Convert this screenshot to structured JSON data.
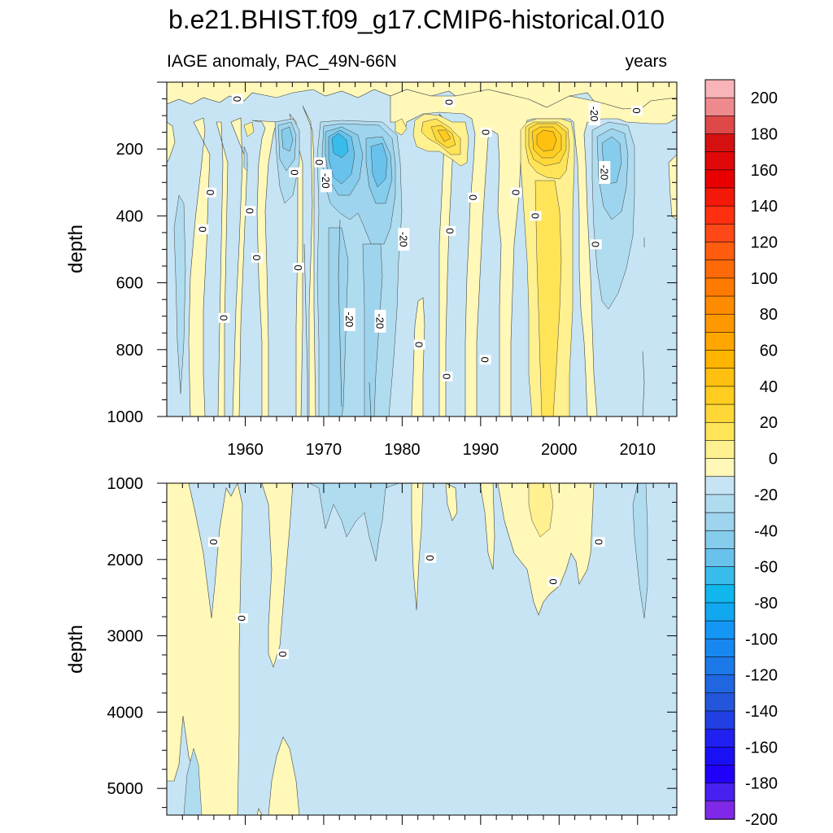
{
  "title": "b.e21.BHIST.f09_g17.CMIP6-historical.010",
  "chart_data": [
    {
      "type": "contour",
      "panel": "upper",
      "left_label": "IAGE anomaly, PAC_49N-66N",
      "right_label": "years",
      "ylabel": "depth",
      "xlabel": "",
      "xlim": [
        1950,
        2015
      ],
      "ylim": [
        1000,
        0
      ],
      "x_ticks": [
        1960,
        1970,
        1980,
        1990,
        2000,
        2010
      ],
      "x_tick_labels": [
        "1960",
        "1970",
        "1980",
        "1990",
        "2000",
        "2010"
      ],
      "y_ticks": [
        200,
        400,
        600,
        800,
        1000
      ],
      "y_tick_labels": [
        "200",
        "400",
        "600",
        "800",
        "1000"
      ],
      "contour_labels": [
        {
          "year": 1958.8,
          "depth": 50,
          "text": "0"
        },
        {
          "year": 1985.8,
          "depth": 60,
          "text": "0"
        },
        {
          "year": 2004.3,
          "depth": 95,
          "text": "-20"
        },
        {
          "year": 2009.7,
          "depth": 85,
          "text": "0"
        },
        {
          "year": 1990.5,
          "depth": 150,
          "text": "0"
        },
        {
          "year": 1969.3,
          "depth": 240,
          "text": "0"
        },
        {
          "year": 1966.1,
          "depth": 270,
          "text": "0"
        },
        {
          "year": 1970.1,
          "depth": 295,
          "text": "-20"
        },
        {
          "year": 2005.6,
          "depth": 270,
          "text": "-20"
        },
        {
          "year": 1955.4,
          "depth": 330,
          "text": "0"
        },
        {
          "year": 1988.9,
          "depth": 345,
          "text": "0"
        },
        {
          "year": 1994.3,
          "depth": 330,
          "text": "0"
        },
        {
          "year": 1960.4,
          "depth": 385,
          "text": "0"
        },
        {
          "year": 1996.8,
          "depth": 400,
          "text": "0"
        },
        {
          "year": 1954.4,
          "depth": 440,
          "text": "0"
        },
        {
          "year": 1985.9,
          "depth": 445,
          "text": "0"
        },
        {
          "year": 1980.0,
          "depth": 470,
          "text": "-20"
        },
        {
          "year": 2004.5,
          "depth": 485,
          "text": "0"
        },
        {
          "year": 1961.3,
          "depth": 525,
          "text": "0"
        },
        {
          "year": 1966.6,
          "depth": 555,
          "text": "0"
        },
        {
          "year": 1957.1,
          "depth": 705,
          "text": "0"
        },
        {
          "year": 1973.1,
          "depth": 710,
          "text": "-20"
        },
        {
          "year": 1977.0,
          "depth": 715,
          "text": "-20"
        },
        {
          "year": 1982.0,
          "depth": 785,
          "text": "0"
        },
        {
          "year": 1990.4,
          "depth": 830,
          "text": "0"
        },
        {
          "year": 1985.5,
          "depth": 880,
          "text": "0"
        }
      ]
    },
    {
      "type": "contour",
      "panel": "lower",
      "ylabel": "depth",
      "xlabel": "",
      "xlim": [
        1950,
        2015
      ],
      "ylim": [
        5350,
        1000
      ],
      "y_ticks": [
        1000,
        2000,
        3000,
        4000,
        5000
      ],
      "y_tick_labels": [
        "1000",
        "2000",
        "3000",
        "4000",
        "5000"
      ],
      "contour_labels": [
        {
          "year": 1955.8,
          "depth": 1770,
          "text": "0"
        },
        {
          "year": 1983.4,
          "depth": 1980,
          "text": "0"
        },
        {
          "year": 2004.9,
          "depth": 1770,
          "text": "0"
        },
        {
          "year": 1999.1,
          "depth": 2290,
          "text": "0"
        },
        {
          "year": 1959.4,
          "depth": 2770,
          "text": "0"
        },
        {
          "year": 1964.6,
          "depth": 3240,
          "text": "0"
        }
      ]
    }
  ],
  "colorbar": {
    "levels": [
      -200,
      -190,
      -180,
      -170,
      -160,
      -150,
      -140,
      -130,
      -120,
      -110,
      -100,
      -90,
      -80,
      -70,
      -60,
      -50,
      -40,
      -30,
      -20,
      -10,
      0,
      10,
      20,
      30,
      40,
      50,
      60,
      70,
      80,
      90,
      100,
      110,
      120,
      130,
      140,
      150,
      160,
      170,
      180,
      190,
      200
    ],
    "colors_top_to_bottom": [
      "#f8b4b8",
      "#ee8a8e",
      "#de4848",
      "#d61010",
      "#e00808",
      "#e80000",
      "#f41808",
      "#ff3010",
      "#ff4818",
      "#ff5c10",
      "#ff6a08",
      "#ff7a00",
      "#ff8c00",
      "#ff9800",
      "#ffa600",
      "#ffb400",
      "#ffc010",
      "#ffcc20",
      "#ffd838",
      "#ffe458",
      "#fff090",
      "#fff8b8",
      "#c6e4f4",
      "#b0dcf0",
      "#9ed4ee",
      "#86ccec",
      "#68c2ec",
      "#38bcec",
      "#10b6ec",
      "#12a8f0",
      "#1496f4",
      "#1888f0",
      "#1c7ae8",
      "#2066e0",
      "#2456dc",
      "#2040e4",
      "#2020f0",
      "#1a10f4",
      "#2000f8",
      "#4820f0",
      "#8028e8"
    ],
    "tick_labels": [
      "200",
      "180",
      "160",
      "140",
      "120",
      "100",
      "80",
      "60",
      "40",
      "20",
      "0",
      "-20",
      "-40",
      "-60",
      "-80",
      "-100",
      "-120",
      "-140",
      "-160",
      "-180",
      "-200"
    ]
  }
}
